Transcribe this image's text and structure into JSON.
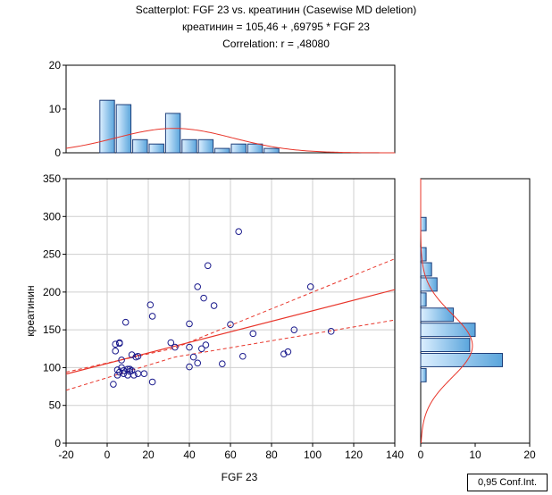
{
  "title": {
    "line1": "Scatterplot: FGF 23 vs. креатинин (Casewise MD deletion)",
    "line2": "креатинин = 105,46 + ,69795 * FGF 23",
    "line3": "Correlation: r = ,48080"
  },
  "legend_label": "0,95 Conf.Int.",
  "colors": {
    "marker": "#1a1a8c",
    "fit_line": "#e8352a",
    "bar_fill": "#5aa5dc",
    "bar_edge": "#1f3f7a"
  },
  "chart_data": {
    "type": "scatter",
    "xlabel": "FGF 23",
    "ylabel": "креатинин",
    "xlim": [
      -20,
      140
    ],
    "ylim": [
      0,
      350
    ],
    "x_ticks": [
      -20,
      0,
      20,
      40,
      60,
      80,
      100,
      120,
      140
    ],
    "y_ticks": [
      0,
      50,
      100,
      150,
      200,
      250,
      300,
      350
    ],
    "grid": true,
    "regression": {
      "intercept": 105.46,
      "slope": 0.69795,
      "r": 0.4808
    },
    "confidence_band": {
      "level": 0.95,
      "upper": [
        [
          -20,
          94
        ],
        [
          33,
          126
        ],
        [
          140,
          244
        ]
      ],
      "lower": [
        [
          -20,
          70
        ],
        [
          33,
          114
        ],
        [
          140,
          163
        ]
      ]
    },
    "points": [
      [
        3,
        78
      ],
      [
        4,
        131
      ],
      [
        4,
        122
      ],
      [
        5,
        97
      ],
      [
        5,
        90
      ],
      [
        6,
        94
      ],
      [
        6,
        132
      ],
      [
        6,
        133
      ],
      [
        7,
        110
      ],
      [
        7,
        100
      ],
      [
        8,
        92
      ],
      [
        8,
        96
      ],
      [
        9,
        160
      ],
      [
        10,
        98
      ],
      [
        10,
        90
      ],
      [
        11,
        95
      ],
      [
        11,
        98
      ],
      [
        12,
        96
      ],
      [
        12,
        117
      ],
      [
        13,
        90
      ],
      [
        14,
        114
      ],
      [
        15,
        115
      ],
      [
        15,
        92
      ],
      [
        18,
        92
      ],
      [
        21,
        183
      ],
      [
        22,
        168
      ],
      [
        22,
        81
      ],
      [
        31,
        133
      ],
      [
        33,
        127
      ],
      [
        40,
        127
      ],
      [
        40,
        101
      ],
      [
        40,
        158
      ],
      [
        42,
        114
      ],
      [
        44,
        207
      ],
      [
        44,
        106
      ],
      [
        46,
        125
      ],
      [
        47,
        192
      ],
      [
        48,
        130
      ],
      [
        49,
        235
      ],
      [
        52,
        182
      ],
      [
        56,
        105
      ],
      [
        60,
        157
      ],
      [
        64,
        280
      ],
      [
        66,
        115
      ],
      [
        71,
        145
      ],
      [
        86,
        118
      ],
      [
        88,
        121
      ],
      [
        91,
        150
      ],
      [
        99,
        207
      ],
      [
        109,
        148
      ]
    ],
    "histogram_x": {
      "bin_start": -20,
      "bin_width": 8,
      "counts": [
        0,
        0,
        12,
        11,
        3,
        2,
        9,
        3,
        3,
        1,
        2,
        2,
        1,
        0,
        0,
        0,
        0,
        0,
        0,
        0
      ],
      "ylim": [
        0,
        20
      ],
      "y_ticks": [
        0,
        10,
        20
      ]
    },
    "histogram_y": {
      "bin_start": 80,
      "bin_width": 20,
      "counts": [
        1,
        15,
        9,
        10,
        6,
        1,
        3,
        2,
        1,
        0,
        1
      ],
      "xlim": [
        0,
        20
      ],
      "x_ticks": [
        0,
        10,
        20
      ]
    }
  }
}
